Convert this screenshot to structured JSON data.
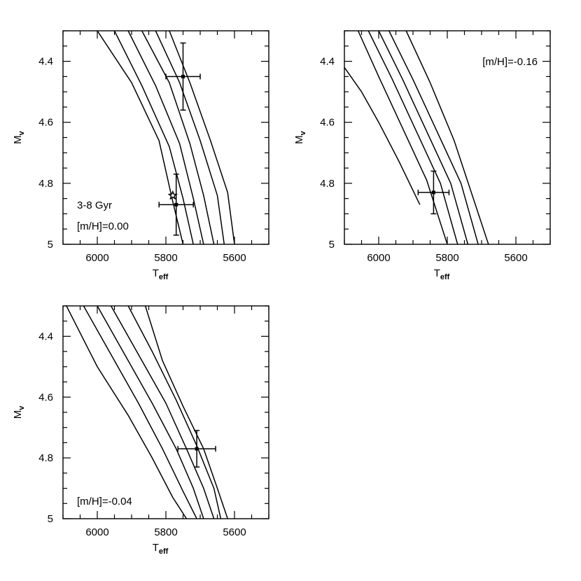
{
  "figure": {
    "x_axis": {
      "main": "T",
      "sub": "eff"
    },
    "y_axis": {
      "main": "M",
      "sub": "v"
    },
    "x_ticks": [
      "6000",
      "5800",
      "5600"
    ],
    "y_ticks": [
      "4.4",
      "4.6",
      "4.8",
      "5"
    ]
  },
  "chart_data": [
    {
      "type": "line",
      "panel": "top-left",
      "annotations": [
        "3-8 Gyr",
        "[m/H]=0.00"
      ],
      "xlim": [
        6100,
        5500
      ],
      "ylim": [
        4.3,
        5.0
      ],
      "series": [
        {
          "x": [
            6000,
            5900,
            5820,
            5780,
            5750
          ],
          "y": [
            4.3,
            4.47,
            4.66,
            4.86,
            5.0
          ]
        },
        {
          "x": [
            5950,
            5870,
            5790,
            5750,
            5720
          ],
          "y": [
            4.3,
            4.48,
            4.68,
            4.85,
            5.0
          ]
        },
        {
          "x": [
            5910,
            5830,
            5760,
            5720,
            5690
          ],
          "y": [
            4.3,
            4.48,
            4.67,
            4.85,
            5.0
          ]
        },
        {
          "x": [
            5870,
            5790,
            5730,
            5690,
            5660
          ],
          "y": [
            4.3,
            4.47,
            4.67,
            4.84,
            5.0
          ]
        },
        {
          "x": [
            5830,
            5760,
            5700,
            5650,
            5630
          ],
          "y": [
            4.3,
            4.47,
            4.66,
            4.84,
            5.0
          ]
        },
        {
          "x": [
            5790,
            5730,
            5670,
            5620,
            5600
          ],
          "y": [
            4.3,
            4.47,
            4.66,
            4.83,
            5.0
          ]
        }
      ],
      "points": [
        {
          "marker": "square",
          "x": 5750,
          "y": 4.45,
          "xerr": 50,
          "yerr": 0.11
        },
        {
          "marker": "square",
          "x": 5770,
          "y": 4.87,
          "xerr": 50,
          "yerr": 0.1
        },
        {
          "marker": "star",
          "x": 5780,
          "y": 4.84
        }
      ]
    },
    {
      "type": "line",
      "panel": "top-right",
      "annotations": [
        "[m/H]=-0.16"
      ],
      "xlim": [
        6100,
        5500
      ],
      "ylim": [
        4.3,
        5.0
      ],
      "series": [
        {
          "x": [
            6100,
            6050,
            6000,
            5940,
            5880
          ],
          "y": [
            4.42,
            4.5,
            4.6,
            4.73,
            4.87
          ]
        },
        {
          "x": [
            6060,
            6000,
            5930,
            5860,
            5800
          ],
          "y": [
            4.3,
            4.45,
            4.62,
            4.79,
            5.0
          ]
        },
        {
          "x": [
            6030,
            5960,
            5890,
            5820,
            5770
          ],
          "y": [
            4.3,
            4.46,
            4.63,
            4.8,
            5.0
          ]
        },
        {
          "x": [
            6000,
            5930,
            5860,
            5790,
            5740
          ],
          "y": [
            4.3,
            4.46,
            4.63,
            4.8,
            5.0
          ]
        },
        {
          "x": [
            5970,
            5900,
            5830,
            5760,
            5710
          ],
          "y": [
            4.3,
            4.46,
            4.63,
            4.8,
            5.0
          ]
        },
        {
          "x": [
            5920,
            5850,
            5780,
            5730,
            5680
          ],
          "y": [
            4.3,
            4.47,
            4.66,
            4.83,
            5.0
          ]
        }
      ],
      "points": [
        {
          "marker": "square",
          "x": 5840,
          "y": 4.83,
          "xerr": 45,
          "yerr": 0.07
        }
      ]
    },
    {
      "type": "line",
      "panel": "bottom-left",
      "annotations": [
        "[m/H]=-0.04"
      ],
      "xlim": [
        6100,
        5500
      ],
      "ylim": [
        4.3,
        5.0
      ],
      "series": [
        {
          "x": [
            6090,
            6000,
            5910,
            5840,
            5780,
            5740
          ],
          "y": [
            4.3,
            4.5,
            4.66,
            4.8,
            4.93,
            5.0
          ]
        },
        {
          "x": [
            6040,
            5960,
            5880,
            5810,
            5750,
            5710
          ],
          "y": [
            4.3,
            4.46,
            4.62,
            4.77,
            4.91,
            5.0
          ]
        },
        {
          "x": [
            6000,
            5920,
            5840,
            5770,
            5720,
            5690
          ],
          "y": [
            4.3,
            4.46,
            4.62,
            4.77,
            4.9,
            5.0
          ]
        },
        {
          "x": [
            5960,
            5880,
            5800,
            5740,
            5690,
            5660
          ],
          "y": [
            4.3,
            4.46,
            4.62,
            4.77,
            4.9,
            5.0
          ]
        },
        {
          "x": [
            5910,
            5840,
            5770,
            5710,
            5660,
            5640
          ],
          "y": [
            4.3,
            4.45,
            4.61,
            4.76,
            4.9,
            5.0
          ]
        },
        {
          "x": [
            5860,
            5810,
            5750,
            5690,
            5650,
            5620
          ],
          "y": [
            4.3,
            4.48,
            4.63,
            4.77,
            4.9,
            5.0
          ]
        }
      ],
      "points": [
        {
          "marker": "square",
          "x": 5710,
          "y": 4.77,
          "xerr": 55,
          "yerr": 0.06
        }
      ]
    }
  ]
}
